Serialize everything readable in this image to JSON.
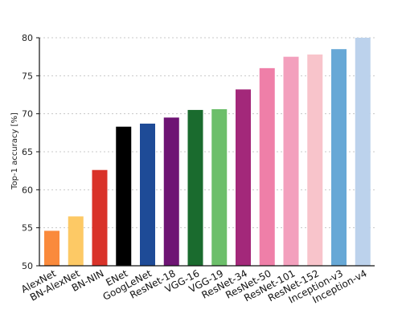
{
  "chart_data": {
    "type": "bar",
    "title": "",
    "xlabel": "",
    "ylabel": "Top-1 accuracy [%]",
    "ylim": [
      50,
      80
    ],
    "yticks": [
      50,
      55,
      60,
      65,
      70,
      75,
      80
    ],
    "grid": "horizontal-dotted",
    "categories": [
      "AlexNet",
      "BN-AlexNet",
      "BN-NIN",
      "ENet",
      "GoogLeNet",
      "ResNet-18",
      "VGG-16",
      "VGG-19",
      "ResNet-34",
      "ResNet-50",
      "ResNet-101",
      "ResNet-152",
      "Inception-v3",
      "Inception-v4"
    ],
    "values": [
      54.6,
      56.5,
      62.6,
      68.3,
      68.7,
      69.5,
      70.5,
      70.6,
      73.2,
      76.0,
      77.5,
      77.8,
      78.5,
      80.0
    ],
    "colors": [
      "#fa8a3c",
      "#fdc965",
      "#d93229",
      "#000000",
      "#1e4b97",
      "#6e1474",
      "#1a6b2e",
      "#6cbf6a",
      "#a3287a",
      "#ef7fa8",
      "#f3a0bd",
      "#f8c4cb",
      "#67a8d6",
      "#bcd2ec"
    ]
  }
}
